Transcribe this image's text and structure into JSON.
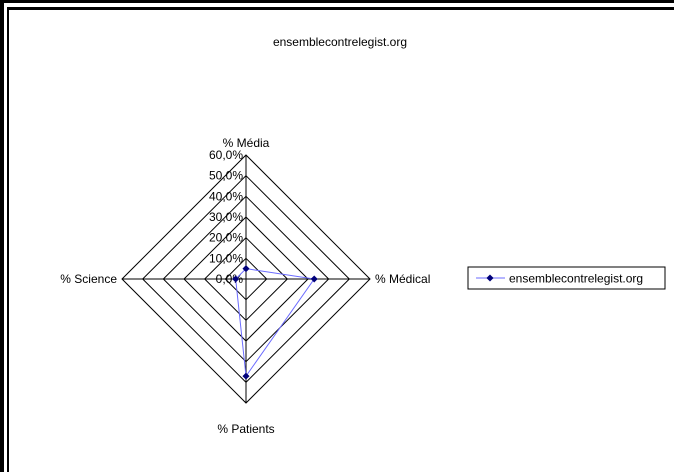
{
  "chart_data": {
    "type": "radar",
    "title": "ensemblecontrelegist.org",
    "axes": [
      "% Média",
      "% Médical",
      "% Patients",
      "% Science"
    ],
    "rlim": [
      0,
      60
    ],
    "ticks": [
      "0,0%",
      "10,0%",
      "20,0%",
      "30,0%",
      "40,0%",
      "50,0%",
      "60,0%"
    ],
    "tick_values": [
      0,
      10,
      20,
      30,
      40,
      50,
      60
    ],
    "series": [
      {
        "name": "ensemblecontrelegist.org",
        "values": [
          5,
          33,
          47,
          5
        ]
      }
    ],
    "legend_position": "right",
    "grid": true,
    "colors": {
      "series": "#6b6bff",
      "marker": "#00007a",
      "grid": "#000000"
    }
  }
}
